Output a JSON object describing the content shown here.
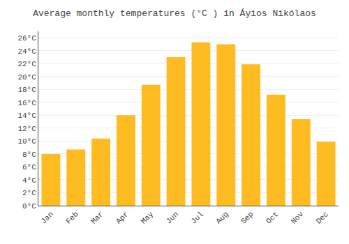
{
  "chart_data": {
    "type": "bar",
    "title": "Average monthly temperatures (°C ) in Áyios Nikólaos",
    "categories": [
      "Jan",
      "Feb",
      "Mar",
      "Apr",
      "May",
      "Jun",
      "Jul",
      "Aug",
      "Sep",
      "Oct",
      "Nov",
      "Dec"
    ],
    "values": [
      8.0,
      8.7,
      10.4,
      14.0,
      18.7,
      23.0,
      25.3,
      25.0,
      21.9,
      17.2,
      13.4,
      9.9
    ],
    "color": "#FFBB22",
    "ylim": [
      0,
      27
    ],
    "yticks": [
      {
        "value": 0,
        "label": "0°C"
      },
      {
        "value": 2,
        "label": "2°C"
      },
      {
        "value": 4,
        "label": "4°C"
      },
      {
        "value": 6,
        "label": "6°C"
      },
      {
        "value": 8,
        "label": "8°C"
      },
      {
        "value": 10,
        "label": "10°C"
      },
      {
        "value": 12,
        "label": "12°C"
      },
      {
        "value": 14,
        "label": "14°C"
      },
      {
        "value": 16,
        "label": "16°C"
      },
      {
        "value": 18,
        "label": "18°C"
      },
      {
        "value": 20,
        "label": "20°C"
      },
      {
        "value": 22,
        "label": "22°C"
      },
      {
        "value": 24,
        "label": "24°C"
      },
      {
        "value": 26,
        "label": "26°C"
      }
    ],
    "grid": true
  }
}
